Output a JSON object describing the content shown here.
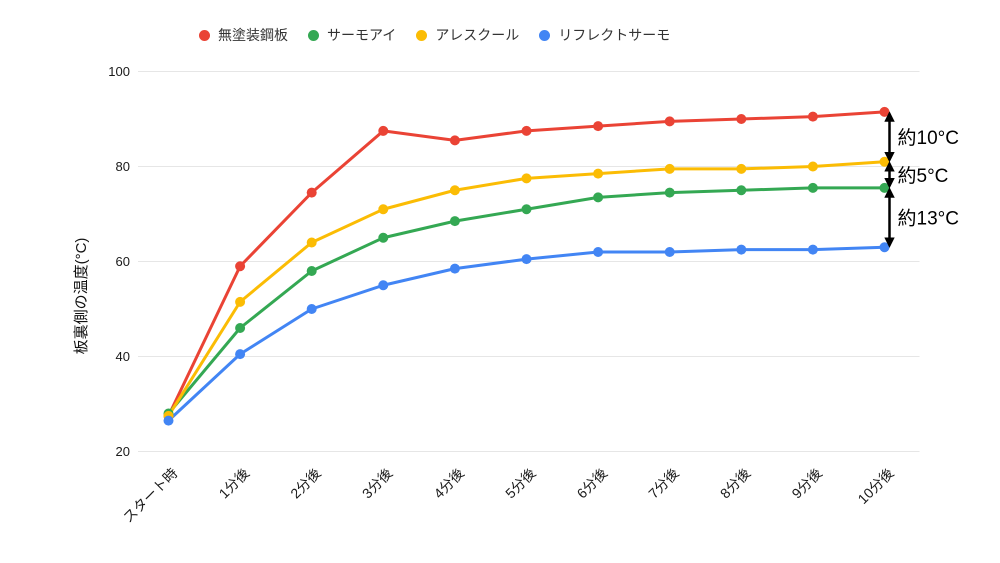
{
  "chart_data": {
    "type": "line",
    "title": "",
    "xlabel": "",
    "ylabel": "板裏側の温度(°C)",
    "ylim": [
      20,
      100
    ],
    "yticks": [
      20,
      40,
      60,
      80,
      100
    ],
    "grid": "horizontal-only",
    "legend_position": "top",
    "x_tick_rotation": 45,
    "categories": [
      "スタート時",
      "1分後",
      "2分後",
      "3分後",
      "4分後",
      "5分後",
      "6分後",
      "7分後",
      "8分後",
      "9分後",
      "10分後"
    ],
    "series": [
      {
        "name": "無塗装鋼板",
        "color": "#EA4335",
        "values": [
          27.5,
          59,
          74.5,
          87.5,
          85.5,
          87.5,
          88.5,
          89.5,
          90,
          90.5,
          91.5
        ]
      },
      {
        "name": "サーモアイ",
        "color": "#34A853",
        "values": [
          28,
          46,
          58,
          65,
          68.5,
          71,
          73.5,
          74.5,
          75,
          75.5,
          75.5
        ]
      },
      {
        "name": "アレスクール",
        "color": "#FBBC04",
        "values": [
          27.5,
          51.5,
          64,
          71,
          75,
          77.5,
          78.5,
          79.5,
          79.5,
          80,
          81
        ]
      },
      {
        "name": "リフレクトサーモ",
        "color": "#4285F4",
        "values": [
          26.5,
          40.5,
          50,
          55,
          58.5,
          60.5,
          62,
          62,
          62.5,
          62.5,
          63
        ]
      }
    ],
    "annotations": [
      {
        "label": "約10°C",
        "at_category": "10分後",
        "from_series": 0,
        "to_series": 2
      },
      {
        "label": "約5°C",
        "at_category": "10分後",
        "from_series": 2,
        "to_series": 1
      },
      {
        "label": "約13°C",
        "at_category": "10分後",
        "from_series": 1,
        "to_series": 3
      }
    ],
    "annotation_color": "#000000",
    "gridline_color": "#e6e6e6",
    "tick_label_color": "#1a1a1a"
  }
}
